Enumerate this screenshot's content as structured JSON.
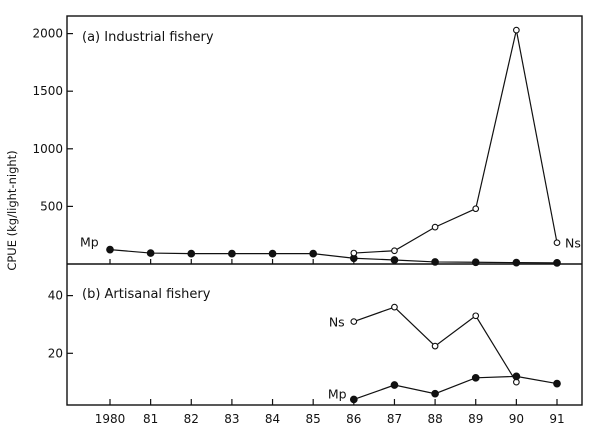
{
  "chart_data": [
    {
      "type": "line",
      "title": "(a)  Industrial fishery",
      "ylabel": "CPUE (kg/light-night)",
      "ylim": [
        0,
        2150
      ],
      "yticks": [
        500,
        1000,
        1500,
        2000
      ],
      "x": [
        1980,
        1981,
        1982,
        1983,
        1984,
        1985,
        1986,
        1987,
        1988,
        1989,
        1990,
        1991
      ],
      "series": [
        {
          "name": "Ns",
          "marker": "open",
          "x": [
            1986,
            1987,
            1988,
            1989,
            1990,
            1991
          ],
          "values": [
            95,
            115,
            320,
            480,
            2030,
            185
          ]
        },
        {
          "name": "Mp",
          "marker": "filled",
          "x": [
            1980,
            1981,
            1982,
            1983,
            1984,
            1985,
            1986,
            1987,
            1988,
            1989,
            1990,
            1991
          ],
          "values": [
            125,
            95,
            90,
            90,
            90,
            90,
            50,
            35,
            18,
            15,
            12,
            10
          ]
        }
      ]
    },
    {
      "type": "line",
      "title": "(b)  Artisanal fishery",
      "ylabel": "CPUE (kg/light-night)",
      "ylim": [
        0,
        48
      ],
      "yticks": [
        20,
        40
      ],
      "x": [
        1980,
        1981,
        1982,
        1983,
        1984,
        1985,
        1986,
        1987,
        1988,
        1989,
        1990,
        1991
      ],
      "xticklabels": [
        "1980",
        "81",
        "82",
        "83",
        "84",
        "85",
        "86",
        "87",
        "88",
        "89",
        "90",
        "91"
      ],
      "series": [
        {
          "name": "Ns",
          "marker": "open",
          "x": [
            1986,
            1987,
            1988,
            1989,
            1990
          ],
          "values": [
            31,
            36,
            22.5,
            33,
            10
          ]
        },
        {
          "name": "Mp",
          "marker": "filled",
          "x": [
            1986,
            1987,
            1988,
            1989,
            1990,
            1991
          ],
          "values": [
            4,
            9,
            6,
            11.5,
            12,
            9.5
          ]
        }
      ]
    }
  ]
}
